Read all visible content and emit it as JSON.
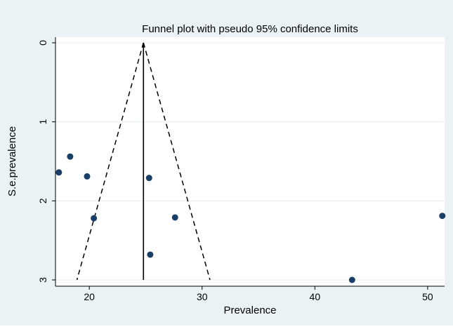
{
  "chart_data": {
    "type": "scatter",
    "title": "Funnel plot with pseudo 95% confidence limits",
    "xlabel": "Prevalence",
    "ylabel": "S.e.prevalence",
    "xlim": [
      17,
      51.5
    ],
    "ylim": [
      0,
      3
    ],
    "y_axis_inverted": true,
    "grid": true,
    "legend": "none",
    "x_ticks": [
      20,
      30,
      40,
      50
    ],
    "y_ticks": [
      0,
      1,
      2,
      3
    ],
    "pooled_estimate": 24.8,
    "confidence_limits": {
      "apex": [
        24.8,
        0
      ],
      "lower_at_ymax": [
        18.9,
        3
      ],
      "upper_at_ymax": [
        30.7,
        3
      ]
    },
    "points": [
      {
        "x": 17.3,
        "y": 1.64
      },
      {
        "x": 18.3,
        "y": 1.44
      },
      {
        "x": 19.8,
        "y": 1.69
      },
      {
        "x": 20.4,
        "y": 2.22
      },
      {
        "x": 25.3,
        "y": 1.71
      },
      {
        "x": 25.4,
        "y": 2.68
      },
      {
        "x": 27.6,
        "y": 2.21
      },
      {
        "x": 43.3,
        "y": 3.0
      },
      {
        "x": 51.3,
        "y": 2.19
      }
    ],
    "colors": {
      "background": "#eaf2f3",
      "plot_area": "#ffffff",
      "points": "#1a3f66",
      "lines": "#000000",
      "grid": "#e8eef0"
    }
  }
}
